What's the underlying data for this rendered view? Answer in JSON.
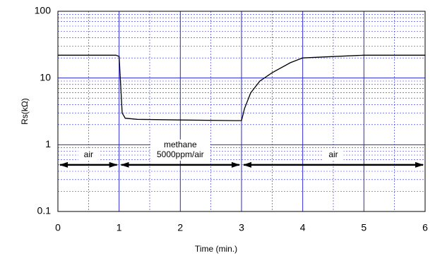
{
  "chart_data": {
    "type": "line",
    "ylabel": "Rs(kΩ)",
    "xlabel": "Time (min.)",
    "log_y": true,
    "grid": true,
    "x": [
      0,
      0.95,
      1.0,
      1.05,
      1.1,
      1.3,
      2.0,
      2.9,
      3.0,
      3.05,
      3.15,
      3.3,
      3.5,
      3.8,
      4.0,
      4.5,
      5.0,
      6.0
    ],
    "series": [
      {
        "name": "Rs",
        "color": "#000000",
        "values": [
          22,
          22,
          21,
          3,
          2.5,
          2.4,
          2.35,
          2.3,
          2.3,
          3.5,
          6,
          9,
          12,
          17,
          20,
          21,
          22,
          22
        ]
      }
    ],
    "xlim": [
      0,
      6
    ],
    "xticks": [
      0,
      1,
      2,
      3,
      4,
      5,
      6
    ],
    "ylim": [
      0.1,
      100
    ],
    "yticks": [
      0.1,
      1,
      10,
      100
    ],
    "regions": [
      {
        "lines": [
          "air"
        ],
        "start": 0,
        "end": 1,
        "level": 0.5
      },
      {
        "lines": [
          "methane",
          "5000ppm/air"
        ],
        "start": 1,
        "end": 3,
        "level": 0.5
      },
      {
        "lines": [
          "air"
        ],
        "start": 3,
        "end": 6,
        "level": 0.5
      }
    ]
  }
}
